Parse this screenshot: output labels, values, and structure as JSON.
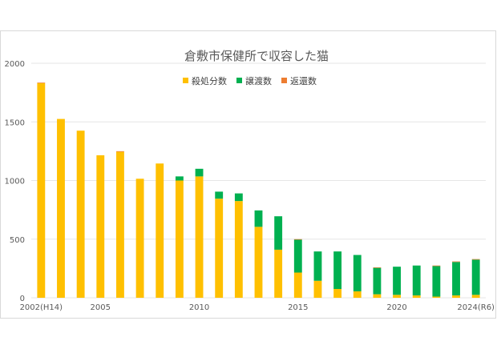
{
  "chart_data": {
    "type": "bar",
    "stacked": true,
    "title": "倉敷市保健所で収容した猫",
    "xlabel": "",
    "ylabel": "",
    "ylim": [
      0,
      2000
    ],
    "y_ticks": [
      "0",
      "500",
      "1000",
      "1500",
      "2000"
    ],
    "x_tick_labels": [
      {
        "label": "2002(H14)",
        "index": 0
      },
      {
        "label": "2005",
        "index": 3
      },
      {
        "label": "2010",
        "index": 8
      },
      {
        "label": "2015",
        "index": 13
      },
      {
        "label": "2020",
        "index": 18
      },
      {
        "label": "2024(R6)",
        "index": 22
      }
    ],
    "categories": [
      2002,
      2003,
      2004,
      2005,
      2006,
      2007,
      2008,
      2009,
      2010,
      2011,
      2012,
      2013,
      2014,
      2015,
      2016,
      2017,
      2018,
      2019,
      2020,
      2021,
      2022,
      2023,
      2024
    ],
    "series": [
      {
        "name": "殺処分数",
        "color": "#FFC000",
        "values": [
          1830,
          1525,
          1425,
          1215,
          1245,
          1015,
          1145,
          1000,
          1035,
          845,
          825,
          605,
          410,
          215,
          145,
          75,
          55,
          30,
          25,
          20,
          10,
          20,
          25
        ]
      },
      {
        "name": "譲渡数",
        "color": "#00B050",
        "values": [
          0,
          0,
          0,
          0,
          0,
          0,
          0,
          35,
          65,
          60,
          65,
          140,
          285,
          280,
          250,
          320,
          310,
          225,
          240,
          255,
          260,
          285,
          300
        ]
      },
      {
        "name": "返還数",
        "color": "#ED7D31",
        "values": [
          5,
          0,
          0,
          0,
          5,
          0,
          0,
          0,
          0,
          0,
          0,
          0,
          0,
          5,
          0,
          0,
          0,
          5,
          0,
          0,
          5,
          5,
          5
        ]
      }
    ],
    "grid": true,
    "legend_position": "top"
  }
}
